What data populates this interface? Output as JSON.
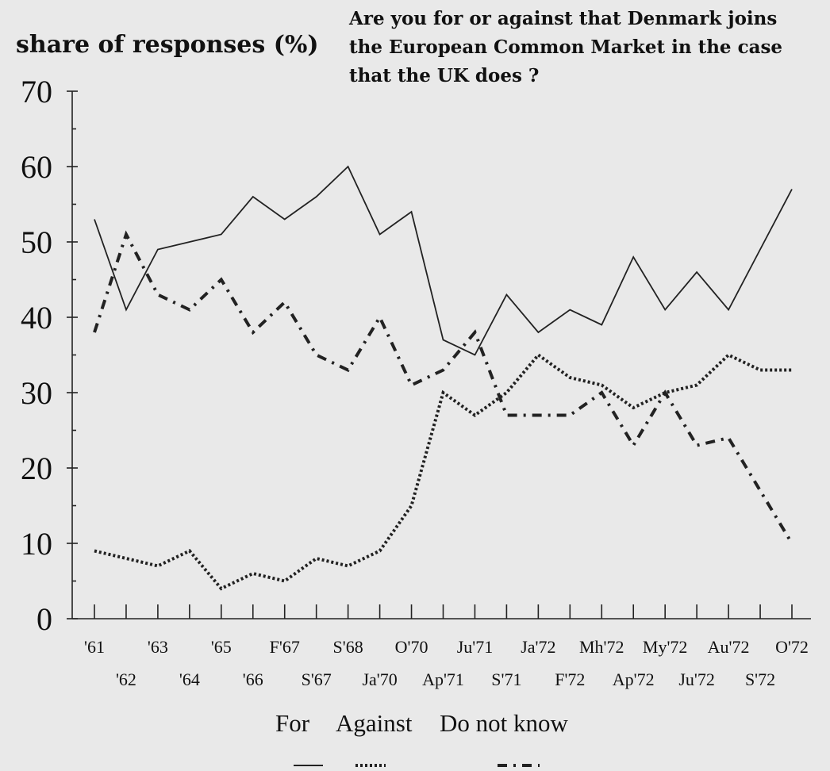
{
  "chart_data": {
    "type": "line",
    "ylabel": "share of responses (%)",
    "title_lines": [
      "Are you for or against that Denmark joins",
      "the European Common Market in the case",
      "that the UK does ?"
    ],
    "ylim": [
      0,
      70
    ],
    "yticks": [
      0,
      10,
      20,
      30,
      40,
      50,
      60,
      70
    ],
    "categories": [
      "'61",
      "'62",
      "'63",
      "'64",
      "'65",
      "'66",
      "F'67",
      "S'67",
      "S'68",
      "Ja'70",
      "O'70",
      "Ap'71",
      "Ju'71",
      "S'71",
      "Ja'72",
      "F'72",
      "Mh'72",
      "Ap'72",
      "My'72",
      "Ju'72",
      "Au'72",
      "S'72",
      "O'72"
    ],
    "series": [
      {
        "name": "For",
        "style": "solid",
        "values": [
          53,
          41,
          49,
          50,
          51,
          56,
          53,
          56,
          60,
          51,
          54,
          37,
          35,
          43,
          38,
          41,
          39,
          48,
          41,
          46,
          41,
          49,
          57
        ]
      },
      {
        "name": "Against",
        "style": "dotted",
        "values": [
          9,
          8,
          7,
          9,
          4,
          6,
          5,
          8,
          7,
          9,
          15,
          30,
          27,
          30,
          35,
          32,
          31,
          28,
          30,
          31,
          35,
          33,
          33
        ]
      },
      {
        "name": "Do not know",
        "style": "dashdot",
        "values": [
          38,
          51,
          43,
          41,
          45,
          38,
          42,
          35,
          33,
          40,
          31,
          33,
          38,
          27,
          27,
          27,
          30,
          23,
          30,
          23,
          24,
          17,
          10
        ]
      }
    ],
    "legend": {
      "placement": "bottom-center"
    },
    "grid": false
  }
}
